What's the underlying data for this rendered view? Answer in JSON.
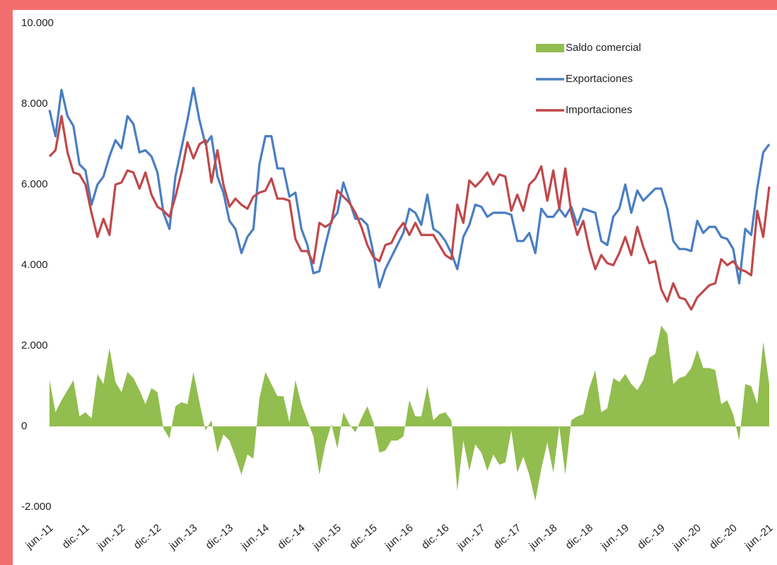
{
  "chart_data": {
    "type": "area-line",
    "categories": [
      "jun.-11",
      null,
      null,
      null,
      null,
      null,
      "dic.-11",
      null,
      null,
      null,
      null,
      null,
      "jun.-12",
      null,
      null,
      null,
      null,
      null,
      "dic.-12",
      null,
      null,
      null,
      null,
      null,
      "jun.-13",
      null,
      null,
      null,
      null,
      null,
      "dic.-13",
      null,
      null,
      null,
      null,
      null,
      "jun.-14",
      null,
      null,
      null,
      null,
      null,
      "dic.-14",
      null,
      null,
      null,
      null,
      null,
      "jun.-15",
      null,
      null,
      null,
      null,
      null,
      "dic.-15",
      null,
      null,
      null,
      null,
      null,
      "jun.-16",
      null,
      null,
      null,
      null,
      null,
      "dic.-16",
      null,
      null,
      null,
      null,
      null,
      "jun.-17",
      null,
      null,
      null,
      null,
      null,
      "dic.-17",
      null,
      null,
      null,
      null,
      null,
      "jun.-18",
      null,
      null,
      null,
      null,
      null,
      "dic.-18",
      null,
      null,
      null,
      null,
      null,
      "jun.-19",
      null,
      null,
      null,
      null,
      null,
      "dic.-19",
      null,
      null,
      null,
      null,
      null,
      "jun.-20",
      null,
      null,
      null,
      null,
      null,
      "dic.-20",
      null,
      null,
      null,
      null,
      null,
      "jun.-21"
    ],
    "series": [
      {
        "name": "Saldo comercial",
        "kind": "area",
        "color": "#92bd4f",
        "values": [
          1150,
          350,
          650,
          900,
          1150,
          250,
          350,
          200,
          1300,
          1050,
          1950,
          1100,
          850,
          1350,
          1200,
          900,
          550,
          950,
          850,
          -50,
          -300,
          500,
          600,
          550,
          1350,
          600,
          -100,
          150,
          -650,
          -200,
          -350,
          -750,
          -1200,
          -700,
          -800,
          700,
          1350,
          1050,
          750,
          750,
          100,
          1150,
          550,
          150,
          -250,
          -1200,
          -450,
          50,
          -550,
          350,
          50,
          -150,
          200,
          500,
          100,
          -650,
          -600,
          -350,
          -350,
          -250,
          650,
          250,
          250,
          1000,
          150,
          300,
          350,
          150,
          -1600,
          -350,
          -1100,
          -450,
          -650,
          -1100,
          -700,
          -950,
          -900,
          -100,
          -1150,
          -750,
          -1200,
          -1850,
          -1050,
          -400,
          -1150,
          0,
          -1200,
          150,
          250,
          300,
          950,
          1400,
          350,
          450,
          1200,
          1100,
          1300,
          1050,
          900,
          1150,
          1700,
          1800,
          2500,
          2300,
          1050,
          1200,
          1250,
          1450,
          1900,
          1450,
          1450,
          1400,
          550,
          650,
          300,
          -350,
          1050,
          1000,
          550,
          2100,
          1050
        ]
      },
      {
        "name": "Exportaciones",
        "kind": "line",
        "color": "#4a7ec2",
        "values": [
          7850,
          7200,
          8350,
          7700,
          7450,
          6500,
          6350,
          5500,
          6000,
          6200,
          6700,
          7100,
          6900,
          7700,
          7500,
          6800,
          6850,
          6700,
          6300,
          5300,
          4900,
          6200,
          6900,
          7600,
          8400,
          7600,
          7000,
          7200,
          6200,
          5800,
          5100,
          4900,
          4300,
          4700,
          4900,
          6500,
          7200,
          7200,
          6400,
          6400,
          5700,
          5800,
          4900,
          4500,
          3800,
          3850,
          4500,
          5100,
          5300,
          6050,
          5600,
          5150,
          5150,
          5000,
          4300,
          3450,
          3900,
          4200,
          4500,
          4800,
          5400,
          5300,
          5000,
          5750,
          4900,
          4800,
          4600,
          4300,
          3900,
          4700,
          5000,
          5500,
          5450,
          5200,
          5300,
          5300,
          5300,
          5250,
          4600,
          4600,
          4800,
          4300,
          5400,
          5200,
          5200,
          5400,
          5200,
          5450,
          5000,
          5400,
          5350,
          5300,
          4600,
          4500,
          5200,
          5400,
          6000,
          5300,
          5850,
          5600,
          5750,
          5900,
          5900,
          5400,
          4600,
          4400,
          4400,
          4350,
          5100,
          4800,
          4950,
          4950,
          4700,
          4650,
          4400,
          3550,
          4900,
          4750,
          5900,
          6800,
          7000
        ]
      },
      {
        "name": "Importaciones",
        "kind": "line",
        "color": "#c0484a",
        "values": [
          6700,
          6850,
          7700,
          6800,
          6300,
          6250,
          6000,
          5300,
          4700,
          5150,
          4750,
          6000,
          6050,
          6350,
          6300,
          5900,
          6300,
          5750,
          5450,
          5350,
          5200,
          5700,
          6300,
          7050,
          6650,
          7000,
          7100,
          6050,
          6850,
          6000,
          5450,
          5650,
          5500,
          5400,
          5700,
          5800,
          5850,
          6150,
          5650,
          5650,
          5600,
          4650,
          4350,
          4350,
          4050,
          5050,
          4950,
          5050,
          5850,
          5700,
          5550,
          5300,
          4950,
          4500,
          4200,
          4100,
          4500,
          4550,
          4850,
          5050,
          4750,
          5050,
          4750,
          4750,
          4750,
          4500,
          4250,
          4150,
          5500,
          5050,
          6100,
          5950,
          6100,
          6300,
          6000,
          6250,
          6200,
          5350,
          5750,
          5350,
          6000,
          6150,
          6450,
          5600,
          6350,
          5400,
          6400,
          5300,
          4750,
          5100,
          4400,
          3900,
          4250,
          4050,
          4000,
          4300,
          4700,
          4250,
          4950,
          4450,
          4050,
          4100,
          3400,
          3100,
          3550,
          3200,
          3150,
          2900,
          3200,
          3350,
          3500,
          3550,
          4150,
          4000,
          4100,
          3900,
          3850,
          3750,
          5350,
          4700,
          5950
        ]
      }
    ],
    "ylim": [
      -2000,
      10000
    ],
    "yticks": [
      {
        "value": -2000,
        "label": "-2.000"
      },
      0,
      {
        "value": 2000,
        "label": "2.000"
      },
      {
        "value": 4000,
        "label": "4.000"
      },
      {
        "value": 6000,
        "label": "6.000"
      },
      {
        "value": 8000,
        "label": "8.000"
      },
      {
        "value": 10000,
        "label": "10.000"
      }
    ],
    "grid": false,
    "legend": "top-right"
  }
}
